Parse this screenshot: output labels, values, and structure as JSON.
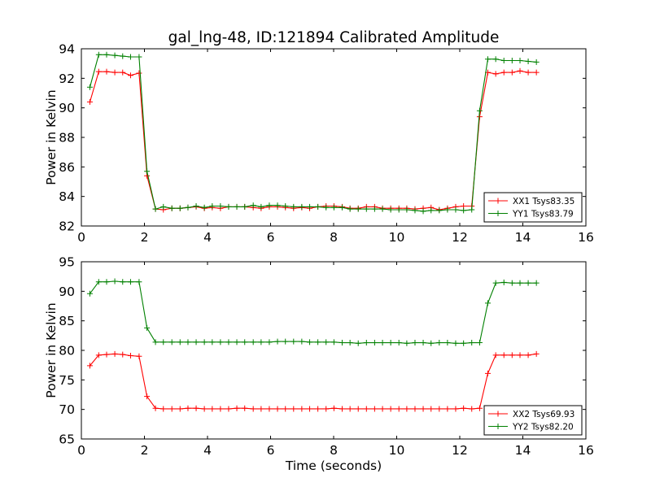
{
  "chart_data": [
    {
      "type": "line",
      "title": "gal_lng-48, ID:121894 Calibrated Amplitude",
      "xlabel": "",
      "ylabel": "Power in Kelvin",
      "xlim": [
        0,
        16
      ],
      "ylim": [
        82,
        94
      ],
      "xticks": [
        "0",
        "2",
        "4",
        "6",
        "8",
        "10",
        "12",
        "14",
        "16"
      ],
      "yticks": [
        "82",
        "84",
        "86",
        "88",
        "90",
        "92",
        "94"
      ],
      "grid": false,
      "legend_position": "lower-right",
      "x": [
        0.27,
        0.55,
        0.8,
        1.06,
        1.31,
        1.56,
        1.83,
        2.08,
        2.35,
        2.6,
        2.87,
        3.13,
        3.38,
        3.64,
        3.9,
        4.15,
        4.41,
        4.67,
        4.93,
        5.18,
        5.45,
        5.7,
        5.96,
        6.22,
        6.47,
        6.73,
        6.99,
        7.24,
        7.5,
        7.76,
        8.01,
        8.27,
        8.52,
        8.78,
        9.04,
        9.3,
        9.55,
        9.81,
        10.07,
        10.32,
        10.58,
        10.84,
        11.09,
        11.35,
        11.61,
        11.87,
        12.12,
        12.38,
        12.63,
        12.89,
        13.14,
        13.4,
        13.66,
        13.91,
        14.17,
        14.43
      ],
      "series": [
        {
          "name": "XX1 Tsys83.35",
          "color": "#ff0000",
          "values": [
            90.4,
            92.45,
            92.45,
            92.4,
            92.4,
            92.2,
            92.35,
            85.4,
            83.15,
            83.1,
            83.2,
            83.2,
            83.25,
            83.3,
            83.2,
            83.25,
            83.2,
            83.3,
            83.3,
            83.3,
            83.25,
            83.2,
            83.3,
            83.3,
            83.25,
            83.2,
            83.25,
            83.2,
            83.3,
            83.35,
            83.35,
            83.3,
            83.2,
            83.2,
            83.3,
            83.3,
            83.2,
            83.2,
            83.2,
            83.2,
            83.15,
            83.2,
            83.25,
            83.1,
            83.2,
            83.3,
            83.35,
            83.35,
            89.4,
            92.4,
            92.3,
            92.4,
            92.4,
            92.5,
            92.4,
            92.4
          ]
        },
        {
          "name": "YY1 Tsys83.79",
          "color": "#008000",
          "values": [
            91.4,
            93.6,
            93.6,
            93.55,
            93.5,
            93.45,
            93.45,
            85.7,
            83.15,
            83.3,
            83.2,
            83.2,
            83.25,
            83.35,
            83.25,
            83.35,
            83.35,
            83.3,
            83.3,
            83.3,
            83.4,
            83.3,
            83.4,
            83.4,
            83.35,
            83.3,
            83.3,
            83.3,
            83.3,
            83.25,
            83.25,
            83.25,
            83.15,
            83.15,
            83.15,
            83.15,
            83.15,
            83.1,
            83.1,
            83.1,
            83.05,
            83.0,
            83.05,
            83.05,
            83.1,
            83.1,
            83.05,
            83.1,
            89.8,
            93.3,
            93.3,
            93.2,
            93.2,
            93.2,
            93.15,
            93.1
          ]
        }
      ]
    },
    {
      "type": "line",
      "title": "",
      "xlabel": "Time (seconds)",
      "ylabel": "Power in Kelvin",
      "xlim": [
        0,
        16
      ],
      "ylim": [
        65,
        95
      ],
      "xticks": [
        "0",
        "2",
        "4",
        "6",
        "8",
        "10",
        "12",
        "14",
        "16"
      ],
      "yticks": [
        "65",
        "70",
        "75",
        "80",
        "85",
        "90",
        "95"
      ],
      "grid": false,
      "legend_position": "lower-right",
      "x": [
        0.27,
        0.55,
        0.8,
        1.06,
        1.31,
        1.56,
        1.83,
        2.08,
        2.35,
        2.6,
        2.87,
        3.13,
        3.38,
        3.64,
        3.9,
        4.15,
        4.41,
        4.67,
        4.93,
        5.18,
        5.45,
        5.7,
        5.96,
        6.22,
        6.47,
        6.73,
        6.99,
        7.24,
        7.5,
        7.76,
        8.01,
        8.27,
        8.52,
        8.78,
        9.04,
        9.3,
        9.55,
        9.81,
        10.07,
        10.32,
        10.58,
        10.84,
        11.09,
        11.35,
        11.61,
        11.87,
        12.12,
        12.38,
        12.63,
        12.89,
        13.14,
        13.4,
        13.66,
        13.91,
        14.17,
        14.43
      ],
      "series": [
        {
          "name": "XX2 Tsys69.93",
          "color": "#ff0000",
          "values": [
            77.4,
            79.2,
            79.3,
            79.4,
            79.3,
            79.1,
            79.0,
            72.2,
            70.2,
            70.1,
            70.1,
            70.1,
            70.2,
            70.2,
            70.1,
            70.1,
            70.1,
            70.1,
            70.2,
            70.2,
            70.1,
            70.1,
            70.1,
            70.1,
            70.1,
            70.1,
            70.1,
            70.1,
            70.1,
            70.1,
            70.2,
            70.1,
            70.1,
            70.1,
            70.1,
            70.1,
            70.1,
            70.1,
            70.1,
            70.1,
            70.1,
            70.1,
            70.1,
            70.1,
            70.1,
            70.1,
            70.2,
            70.1,
            70.2,
            76.1,
            79.2,
            79.2,
            79.2,
            79.2,
            79.2,
            79.4
          ]
        },
        {
          "name": "YY2 Tsys82.20",
          "color": "#008000",
          "values": [
            89.6,
            91.6,
            91.6,
            91.7,
            91.6,
            91.6,
            91.6,
            83.8,
            81.4,
            81.4,
            81.4,
            81.4,
            81.4,
            81.4,
            81.4,
            81.4,
            81.4,
            81.4,
            81.4,
            81.4,
            81.4,
            81.4,
            81.4,
            81.5,
            81.5,
            81.5,
            81.5,
            81.4,
            81.4,
            81.4,
            81.4,
            81.3,
            81.3,
            81.2,
            81.3,
            81.3,
            81.3,
            81.3,
            81.3,
            81.2,
            81.3,
            81.3,
            81.2,
            81.3,
            81.3,
            81.2,
            81.2,
            81.3,
            81.3,
            88.0,
            91.4,
            91.5,
            91.4,
            91.4,
            91.4,
            91.4
          ]
        }
      ]
    }
  ]
}
